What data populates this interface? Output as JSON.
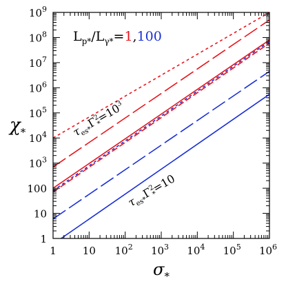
{
  "chart_data": {
    "type": "line",
    "xlabel": "σ",
    "xlabel_sub": "*",
    "ylabel": "χ",
    "ylabel_sub": "*",
    "xscale": "log",
    "yscale": "log",
    "xlim": [
      1,
      1000000
    ],
    "ylim": [
      1,
      1000000000
    ],
    "x_ticks": [
      {
        "v": 1,
        "base": "1",
        "exp": ""
      },
      {
        "v": 10,
        "base": "10",
        "exp": ""
      },
      {
        "v": 100,
        "base": "10",
        "exp": "2"
      },
      {
        "v": 1000,
        "base": "10",
        "exp": "3"
      },
      {
        "v": 10000,
        "base": "10",
        "exp": "4"
      },
      {
        "v": 100000,
        "base": "10",
        "exp": "5"
      },
      {
        "v": 1000000,
        "base": "10",
        "exp": "6"
      }
    ],
    "y_ticks": [
      {
        "v": 1,
        "base": "1",
        "exp": ""
      },
      {
        "v": 10,
        "base": "10",
        "exp": ""
      },
      {
        "v": 100,
        "base": "100",
        "exp": ""
      },
      {
        "v": 1000,
        "base": "10",
        "exp": "3"
      },
      {
        "v": 10000,
        "base": "10",
        "exp": "4"
      },
      {
        "v": 100000,
        "base": "10",
        "exp": "5"
      },
      {
        "v": 1000000,
        "base": "10",
        "exp": "6"
      },
      {
        "v": 10000000,
        "base": "10",
        "exp": "7"
      },
      {
        "v": 100000000,
        "base": "10",
        "exp": "8"
      },
      {
        "v": 1000000000,
        "base": "10",
        "exp": "9"
      }
    ],
    "legend": {
      "prefix": "L",
      "sub1": "p*",
      "mid": "/L",
      "sub2": "γ*",
      "eq": "=",
      "val1": "1",
      "sep": ",",
      "val2": "100",
      "color1": "#e8141c",
      "color2": "#1a2fd6"
    },
    "annotations": [
      {
        "tau": "τ",
        "tau_sub": "es*",
        "gamma": "Γ",
        "gamma_sup": "2",
        "gamma_sub": "*",
        "eq": "=",
        "value": "10",
        "value_sup": "3"
      },
      {
        "tau": "τ",
        "tau_sub": "es*",
        "gamma": "Γ",
        "gamma_sup": "2",
        "gamma_sub": "*",
        "eq": "=",
        "value": "10",
        "value_sup": ""
      }
    ],
    "series": [
      {
        "color": "#e8141c",
        "style": "dotted",
        "x": [
          1,
          1000000
        ],
        "y": [
          10000,
          1000000000
        ]
      },
      {
        "color": "#e8141c",
        "style": "longdash",
        "x": [
          1,
          1000000
        ],
        "y": [
          700,
          500000000
        ]
      },
      {
        "color": "#e8141c",
        "style": "solid",
        "x": [
          1,
          1000000
        ],
        "y": [
          100,
          80000000
        ]
      },
      {
        "color": "#1a2fd6",
        "style": "dotted",
        "x": [
          1,
          1000000
        ],
        "y": [
          80,
          70000000
        ]
      },
      {
        "color": "#e8141c",
        "style": "dashed",
        "x": [
          1,
          1000000
        ],
        "y": [
          70,
          60000000
        ]
      },
      {
        "color": "#1a2fd6",
        "style": "longdash",
        "x": [
          1,
          1000000
        ],
        "y": [
          6,
          4500000
        ]
      },
      {
        "color": "#1a2fd6",
        "style": "solid",
        "x": [
          1,
          1000000
        ],
        "y": [
          0.6,
          550000
        ]
      }
    ]
  }
}
